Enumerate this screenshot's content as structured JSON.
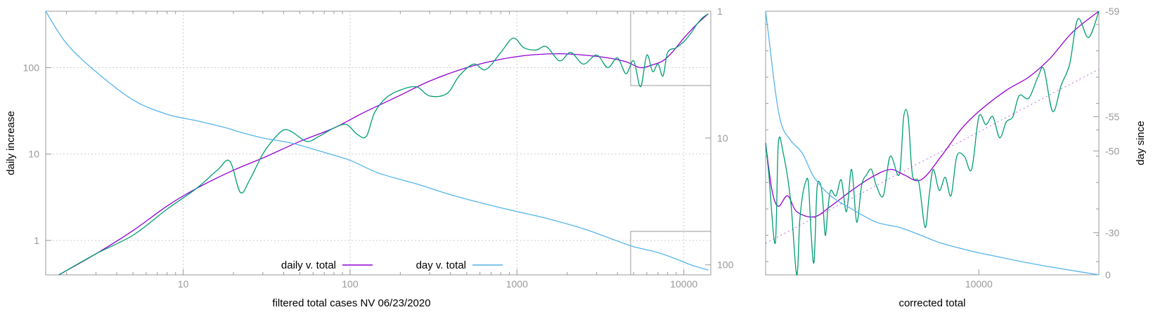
{
  "chart_data": [
    {
      "type": "line",
      "xlabel": "filtered total cases NV 06/23/2020",
      "ylabel": "daily increase",
      "y2label": "",
      "xscale": "log",
      "yscale": "log",
      "y2scale": "log-reversed",
      "xlim": [
        1.5,
        14500
      ],
      "ylim": [
        0.4,
        450
      ],
      "y2lim": [
        1,
        120
      ],
      "grid": true,
      "xticks": [
        "10",
        "100",
        "1000",
        "10000"
      ],
      "yticks": [
        "1",
        "10",
        "100"
      ],
      "y2ticks": [
        "1",
        "10",
        "100"
      ],
      "legend_position": "bottom-center",
      "legend": [
        "daily v. total",
        "day v. total"
      ],
      "series": [
        {
          "name": "daily v. total",
          "color": "#9400d3",
          "axis": "y",
          "x": [
            1.8,
            3,
            5,
            8,
            12,
            20,
            30,
            50,
            80,
            120,
            200,
            300,
            500,
            800,
            1200,
            1800,
            2500,
            3500,
            4500,
            5500,
            6500,
            7500,
            8500,
            10000,
            12000,
            14000
          ],
          "values": [
            0.4,
            0.7,
            1.3,
            2.5,
            4,
            6.5,
            9,
            14,
            20,
            30,
            48,
            70,
            100,
            125,
            140,
            145,
            140,
            130,
            117,
            100,
            108,
            120,
            150,
            220,
            320,
            420
          ]
        },
        {
          "name": "",
          "color": "#009e73",
          "axis": "y",
          "x": [
            1.8,
            3,
            5,
            8,
            12,
            16,
            19,
            22,
            25,
            30,
            35,
            40,
            45,
            55,
            65,
            80,
            95,
            110,
            125,
            140,
            165,
            200,
            250,
            300,
            380,
            450,
            550,
            650,
            800,
            950,
            1100,
            1300,
            1500,
            1800,
            2100,
            2500,
            3000,
            3500,
            4000,
            4500,
            5000,
            5500,
            6000,
            6500,
            7000,
            7500,
            8000,
            9000,
            10000,
            11000,
            12000,
            13000,
            14000
          ],
          "values": [
            0.4,
            0.7,
            1.15,
            2.3,
            4,
            6.5,
            8.3,
            3.6,
            5,
            10,
            15,
            19,
            18,
            14,
            16,
            20,
            22,
            17,
            16,
            30,
            45,
            55,
            60,
            47,
            50,
            80,
            110,
            95,
            150,
            220,
            170,
            160,
            175,
            120,
            150,
            110,
            140,
            100,
            130,
            85,
            120,
            60,
            140,
            90,
            110,
            80,
            150,
            170,
            200,
            250,
            320,
            380,
            420
          ]
        },
        {
          "name": "day v. total",
          "color": "#56b4e9",
          "axis": "y2",
          "x": [
            1.5,
            2,
            3,
            5,
            8,
            12,
            18,
            22,
            30,
            45,
            70,
            100,
            150,
            250,
            400,
            700,
            1000,
            1500,
            2500,
            4000,
            5000,
            7000,
            9000,
            11000,
            14000
          ],
          "values": [
            1,
            1.8,
            3,
            5,
            6.5,
            7.3,
            8.3,
            9,
            10,
            11,
            13,
            15,
            19,
            23,
            28,
            34,
            38,
            43,
            52,
            65,
            72,
            80,
            90,
            100,
            110
          ]
        }
      ]
    },
    {
      "type": "line",
      "xlabel": "corrected total",
      "ylabel": "",
      "y2label": "day since",
      "xscale": "log",
      "xlim": [
        5500,
        14000
      ],
      "ylim": [
        0,
        1
      ],
      "y2ticks": [
        "-59",
        "-55",
        "-50",
        "-30",
        "0"
      ],
      "xticks": [
        "10000"
      ],
      "grid": false,
      "series": [
        {
          "name": "",
          "color": "#9400d3",
          "axis": "y",
          "x": [
            5500,
            5600,
            5700,
            5850,
            6000,
            6300,
            6600,
            7000,
            7400,
            7800,
            8100,
            8500,
            9000,
            9500,
            10000,
            10800,
            11500,
            12200,
            13000,
            14000
          ],
          "values": [
            0.5,
            0.32,
            0.26,
            0.3,
            0.24,
            0.22,
            0.26,
            0.32,
            0.37,
            0.4,
            0.38,
            0.36,
            0.45,
            0.55,
            0.62,
            0.7,
            0.75,
            0.82,
            0.92,
            1.0
          ]
        },
        {
          "name": "",
          "color": "#009e73",
          "axis": "y",
          "x": [
            5500,
            5550,
            5650,
            5700,
            5780,
            5900,
            6000,
            6050,
            6100,
            6150,
            6200,
            6250,
            6300,
            6350,
            6400,
            6450,
            6500,
            6550,
            6600,
            6700,
            6800,
            6900,
            7000,
            7100,
            7200,
            7300,
            7400,
            7500,
            7650,
            7800,
            8000,
            8100,
            8200,
            8300,
            8450,
            8600,
            8700,
            8800,
            8950,
            9100,
            9250,
            9400,
            9600,
            9800,
            10000,
            10200,
            10400,
            10600,
            10800,
            11000,
            11200,
            11500,
            11800,
            12000,
            12300,
            12600,
            12900,
            13200,
            13600,
            14000
          ],
          "values": [
            0.5,
            0.38,
            0.12,
            0.5,
            0.46,
            0.28,
            0.0,
            0.2,
            0.3,
            0.35,
            0.35,
            0.15,
            0.05,
            0.32,
            0.35,
            0.3,
            0.15,
            0.25,
            0.32,
            0.3,
            0.36,
            0.24,
            0.4,
            0.2,
            0.34,
            0.38,
            0.4,
            0.34,
            0.3,
            0.45,
            0.38,
            0.6,
            0.6,
            0.38,
            0.35,
            0.18,
            0.3,
            0.4,
            0.32,
            0.37,
            0.3,
            0.45,
            0.45,
            0.4,
            0.6,
            0.57,
            0.6,
            0.52,
            0.58,
            0.6,
            0.68,
            0.67,
            0.75,
            0.78,
            0.62,
            0.72,
            0.8,
            0.97,
            0.9,
            1.0
          ]
        },
        {
          "name": "",
          "color": "#56b4e9",
          "axis": "y",
          "x": [
            5500,
            5550,
            5650,
            5750,
            5900,
            6100,
            6300,
            6600,
            7000,
            7500,
            8000,
            8500,
            9000,
            9800,
            10500,
            11500,
            12500,
            14000
          ],
          "values": [
            1.0,
            0.9,
            0.7,
            0.57,
            0.51,
            0.46,
            0.37,
            0.3,
            0.25,
            0.2,
            0.18,
            0.15,
            0.12,
            0.09,
            0.07,
            0.045,
            0.025,
            0.0
          ]
        },
        {
          "name": "",
          "color": "#9400d3",
          "axis": "y",
          "x": [
            5500,
            14000
          ],
          "values": [
            0.12,
            0.78
          ],
          "dashed": true
        }
      ]
    }
  ]
}
